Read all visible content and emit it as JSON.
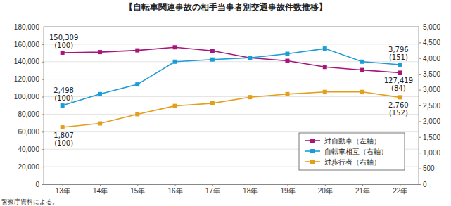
{
  "chart_data": {
    "type": "line",
    "title": "【自転車関連事故の相手当事者別交通事故件数推移】",
    "source": "警察庁資料による。",
    "categories": [
      "13年",
      "14年",
      "15年",
      "16年",
      "17年",
      "18年",
      "19年",
      "20年",
      "21年",
      "22年"
    ],
    "ylim": [
      0,
      180000
    ],
    "yticks": [
      0,
      {
        "value": 20000,
        "label": "20,000"
      },
      {
        "value": 40000,
        "label": "40,000"
      },
      {
        "value": 60000,
        "label": "60,000"
      },
      {
        "value": 80000,
        "label": "80,000"
      },
      {
        "value": 100000,
        "label": "100,000"
      },
      {
        "value": 120000,
        "label": "120,000"
      },
      {
        "value": 140000,
        "label": "140,000"
      },
      {
        "value": 160000,
        "label": "160,000"
      },
      {
        "value": 180000,
        "label": "180,000"
      }
    ],
    "y2lim": [
      0,
      5000
    ],
    "y2ticks": [
      0,
      500,
      {
        "value": 1000,
        "label": "1,000"
      },
      {
        "value": 1500,
        "label": "1,500"
      },
      {
        "value": 2000,
        "label": "2,000"
      },
      {
        "value": 2500,
        "label": "2,500"
      },
      {
        "value": 3000,
        "label": "3,000"
      },
      {
        "value": 3500,
        "label": "3,500"
      },
      {
        "value": 4000,
        "label": "4,000"
      },
      {
        "value": 4500,
        "label": "4,500"
      },
      {
        "value": 5000,
        "label": "5,000"
      }
    ],
    "grid": true,
    "legend": "lower right",
    "marker": "square",
    "series": [
      {
        "name": "対自動車（左軸）",
        "color": "#a8157a",
        "axis": "y",
        "values": [
          150309,
          151000,
          153000,
          156500,
          152500,
          144500,
          141000,
          134000,
          130500,
          127419
        ],
        "value_labels": [
          "150,309",
          null,
          null,
          null,
          null,
          null,
          null,
          null,
          null,
          "127,419"
        ],
        "index_labels": [
          "(100)",
          null,
          null,
          null,
          null,
          null,
          null,
          null,
          null,
          "(84)"
        ]
      },
      {
        "name": "自転車相互（右軸）",
        "color": "#1b9bd7",
        "axis": "y2",
        "values": [
          2498,
          2861,
          3167,
          3889,
          3958,
          4014,
          4139,
          4306,
          3889,
          3796
        ],
        "value_labels": [
          "2,498",
          null,
          null,
          null,
          null,
          null,
          null,
          null,
          null,
          "3,796"
        ],
        "index_labels": [
          "(100)",
          null,
          null,
          null,
          null,
          null,
          null,
          null,
          null,
          "(151)"
        ]
      },
      {
        "name": "対歩行者（右軸）",
        "color": "#e39f1c",
        "axis": "y2",
        "values": [
          1807,
          1931,
          2222,
          2486,
          2569,
          2764,
          2861,
          2931,
          2931,
          2760
        ],
        "value_labels": [
          "1,807",
          null,
          null,
          null,
          null,
          null,
          null,
          null,
          null,
          "2,760"
        ],
        "index_labels": [
          "(100)",
          null,
          null,
          null,
          null,
          null,
          null,
          null,
          null,
          "(152)"
        ]
      }
    ]
  }
}
